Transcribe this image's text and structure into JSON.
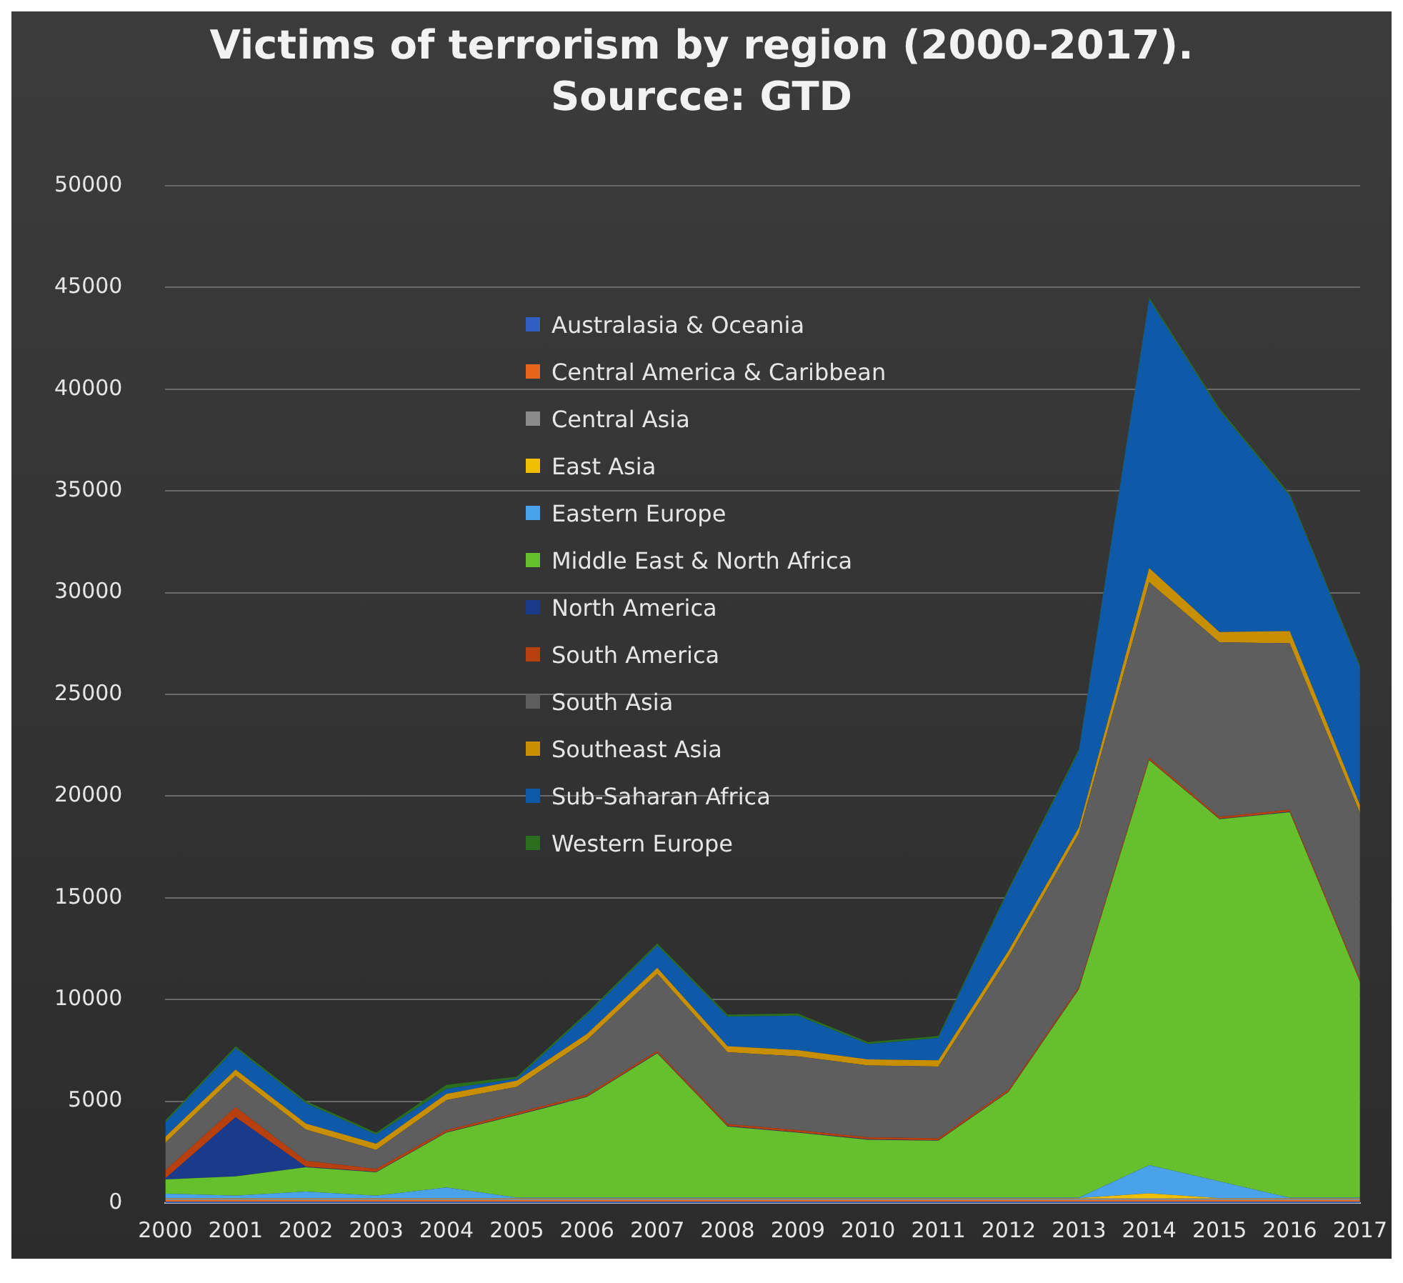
{
  "chart_data": {
    "type": "area",
    "stacked": true,
    "title": "Victims of terrorism by region (2000-2017). Sourcce: GTD",
    "categories": [
      "2000",
      "2001",
      "2002",
      "2003",
      "2004",
      "2005",
      "2006",
      "2007",
      "2008",
      "2009",
      "2010",
      "2011",
      "2012",
      "2013",
      "2014",
      "2015",
      "2016",
      "2017"
    ],
    "ylim": [
      0,
      50000
    ],
    "yticks": [
      0,
      5000,
      10000,
      15000,
      20000,
      25000,
      30000,
      35000,
      40000,
      45000,
      50000
    ],
    "grid": "y",
    "legend": "top",
    "series": [
      {
        "name": "Australasia & Oceania",
        "color": "#2f5fc0",
        "values": [
          60,
          60,
          60,
          60,
          60,
          60,
          60,
          60,
          60,
          60,
          60,
          60,
          60,
          60,
          60,
          60,
          60,
          60
        ]
      },
      {
        "name": "Central America & Caribbean",
        "color": "#e8661c",
        "values": [
          80,
          80,
          80,
          80,
          80,
          80,
          80,
          80,
          80,
          80,
          80,
          80,
          80,
          80,
          80,
          80,
          80,
          80
        ]
      },
      {
        "name": "Central Asia",
        "color": "#8c8c8c",
        "values": [
          80,
          80,
          80,
          80,
          80,
          80,
          80,
          80,
          80,
          80,
          80,
          80,
          80,
          80,
          80,
          80,
          80,
          80
        ]
      },
      {
        "name": "East Asia",
        "color": "#f0c000",
        "values": [
          20,
          20,
          20,
          20,
          20,
          20,
          20,
          20,
          20,
          20,
          20,
          20,
          20,
          20,
          250,
          20,
          20,
          20
        ]
      },
      {
        "name": "Eastern Europe",
        "color": "#4aa3ea",
        "values": [
          220,
          120,
          320,
          120,
          520,
          20,
          20,
          20,
          20,
          20,
          20,
          20,
          20,
          20,
          1390,
          820,
          20,
          20
        ]
      },
      {
        "name": "Middle East & North Africa",
        "color": "#66c02e",
        "values": [
          700,
          950,
          1200,
          1150,
          2700,
          4050,
          4950,
          7100,
          3500,
          3200,
          2850,
          2800,
          5200,
          10250,
          19900,
          17800,
          18950,
          10600
        ]
      },
      {
        "name": "North America",
        "color": "#1a3a8c",
        "values": [
          50,
          2900,
          20,
          20,
          20,
          20,
          20,
          20,
          20,
          20,
          20,
          20,
          20,
          20,
          20,
          20,
          20,
          20
        ]
      },
      {
        "name": "South America",
        "color": "#b8400f",
        "values": [
          400,
          500,
          300,
          150,
          100,
          100,
          100,
          100,
          100,
          100,
          100,
          100,
          100,
          100,
          100,
          100,
          100,
          100
        ]
      },
      {
        "name": "South Asia",
        "color": "#5e5e5e",
        "values": [
          1350,
          1550,
          1530,
          930,
          1480,
          1280,
          2680,
          3780,
          3530,
          3630,
          3530,
          3530,
          6530,
          7530,
          8630,
          8580,
          8180,
          8180
        ]
      },
      {
        "name": "Southeast Asia",
        "color": "#c89000",
        "values": [
          300,
          300,
          300,
          300,
          300,
          300,
          300,
          300,
          300,
          300,
          300,
          300,
          300,
          300,
          700,
          500,
          600,
          400
        ]
      },
      {
        "name": "Sub-Saharan Africa",
        "color": "#0f5aa8",
        "values": [
          700,
          1050,
          1000,
          450,
          250,
          100,
          950,
          1100,
          1450,
          1700,
          750,
          1100,
          2950,
          3750,
          13200,
          10900,
          6650,
          6750
        ]
      },
      {
        "name": "Western Europe",
        "color": "#2a6e1e",
        "values": [
          100,
          100,
          100,
          100,
          200,
          100,
          100,
          100,
          100,
          100,
          100,
          100,
          100,
          100,
          100,
          100,
          100,
          100
        ]
      }
    ]
  }
}
